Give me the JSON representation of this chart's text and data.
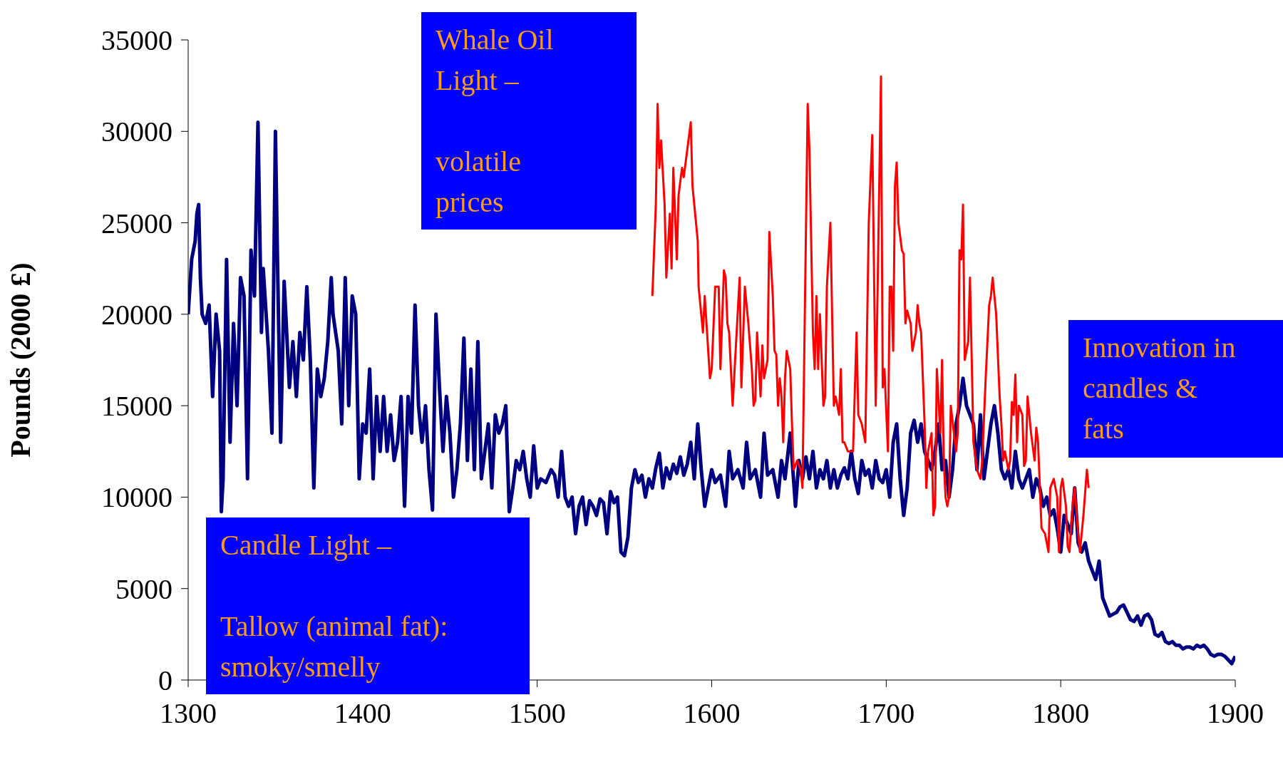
{
  "chart_data": {
    "type": "line",
    "ylabel": "Pounds (2000 £)",
    "xlim": [
      1300,
      1900
    ],
    "xticks": [
      1300,
      1400,
      1500,
      1600,
      1700,
      1800,
      1900
    ],
    "ylim": [
      0,
      35000
    ],
    "yticks": [
      0,
      5000,
      10000,
      15000,
      20000,
      25000,
      30000,
      35000
    ],
    "grid": false,
    "marker": "none",
    "line_style": "solid",
    "annotations": [
      "Whale Oil Light –\n\nvolatile\nprices",
      "Candle Light –\n\nTallow (animal fat):\nsmoky/smelly",
      "Innovation in\ncandles &\nfats"
    ],
    "series": [
      {
        "color": "#000080",
        "x": [
          1300,
          1302,
          1304,
          1305,
          1306,
          1307,
          1308,
          1310,
          1312,
          1314,
          1316,
          1318,
          1319,
          1320,
          1322,
          1324,
          1326,
          1328,
          1330,
          1332,
          1334,
          1336,
          1338,
          1340,
          1342,
          1343,
          1346,
          1348,
          1350,
          1351,
          1353,
          1355,
          1358,
          1360,
          1362,
          1364,
          1366,
          1368,
          1370,
          1372,
          1374,
          1376,
          1378,
          1380,
          1382,
          1383,
          1386,
          1388,
          1390,
          1392,
          1394,
          1396,
          1398,
          1400,
          1402,
          1404,
          1406,
          1408,
          1410,
          1412,
          1414,
          1416,
          1418,
          1420,
          1422,
          1424,
          1426,
          1428,
          1430,
          1432,
          1434,
          1436,
          1438,
          1440,
          1442,
          1444,
          1446,
          1448,
          1450,
          1452,
          1454,
          1456,
          1458,
          1460,
          1462,
          1464,
          1466,
          1468,
          1470,
          1472,
          1474,
          1476,
          1478,
          1480,
          1482,
          1484,
          1486,
          1488,
          1490,
          1492,
          1494,
          1496,
          1498,
          1500,
          1502,
          1505,
          1508,
          1510,
          1512,
          1514,
          1516,
          1518,
          1520,
          1522,
          1524,
          1526,
          1528,
          1530,
          1532,
          1534,
          1536,
          1538,
          1540,
          1542,
          1544,
          1546,
          1548,
          1550,
          1552,
          1554,
          1556,
          1558,
          1560,
          1562,
          1564,
          1566,
          1568,
          1570,
          1572,
          1574,
          1576,
          1578,
          1580,
          1582,
          1584,
          1586,
          1588,
          1590,
          1592,
          1594,
          1596,
          1598,
          1600,
          1602,
          1605,
          1608,
          1610,
          1612,
          1615,
          1618,
          1620,
          1622,
          1625,
          1628,
          1630,
          1632,
          1635,
          1638,
          1640,
          1642,
          1645,
          1648,
          1650,
          1652,
          1654,
          1656,
          1658,
          1660,
          1662,
          1664,
          1666,
          1668,
          1670,
          1672,
          1674,
          1676,
          1678,
          1680,
          1682,
          1684,
          1686,
          1688,
          1690,
          1692,
          1694,
          1696,
          1698,
          1700,
          1702,
          1704,
          1706,
          1708,
          1710,
          1712,
          1714,
          1716,
          1718,
          1720,
          1722,
          1724,
          1726,
          1728,
          1730,
          1732,
          1734,
          1736,
          1738,
          1740,
          1742,
          1744,
          1746,
          1748,
          1750,
          1752,
          1754,
          1756,
          1758,
          1760,
          1762,
          1764,
          1766,
          1768,
          1770,
          1772,
          1774,
          1776,
          1778,
          1780,
          1782,
          1784,
          1786,
          1788,
          1790,
          1792,
          1794,
          1796,
          1798,
          1800,
          1802,
          1804,
          1806,
          1808,
          1810,
          1812,
          1814,
          1816,
          1818,
          1820,
          1822,
          1824,
          1826,
          1828,
          1830,
          1832,
          1834,
          1836,
          1838,
          1840,
          1842,
          1844,
          1846,
          1848,
          1850,
          1852,
          1854,
          1856,
          1858,
          1860,
          1862,
          1864,
          1866,
          1868,
          1870,
          1872,
          1874,
          1876,
          1878,
          1880,
          1882,
          1884,
          1886,
          1888,
          1890,
          1892,
          1894,
          1896,
          1898,
          1900
        ],
        "values": [
          20000,
          23000,
          24000,
          25500,
          26000,
          22000,
          20000,
          19500,
          20500,
          15500,
          20000,
          18000,
          9200,
          11000,
          23000,
          13000,
          19500,
          15000,
          22000,
          21000,
          11000,
          23500,
          21000,
          30500,
          19000,
          22500,
          18000,
          13500,
          30000,
          24000,
          13000,
          21800,
          16000,
          18500,
          15500,
          19000,
          17500,
          21500,
          17500,
          10500,
          17000,
          15500,
          16500,
          18500,
          22000,
          20000,
          18000,
          14000,
          22000,
          15000,
          21000,
          20000,
          11000,
          14000,
          13500,
          17000,
          11000,
          15500,
          12500,
          15500,
          12500,
          14500,
          12000,
          13000,
          15500,
          9500,
          15500,
          13500,
          20500,
          15000,
          13000,
          15000,
          11500,
          9300,
          20000,
          16000,
          12500,
          15500,
          13500,
          10000,
          11500,
          14000,
          18700,
          12000,
          17000,
          11500,
          18500,
          11000,
          12500,
          14000,
          10500,
          14500,
          13500,
          14000,
          15000,
          9200,
          10500,
          12000,
          11500,
          12500,
          11000,
          10000,
          12800,
          10500,
          11000,
          10800,
          11500,
          11200,
          10000,
          12500,
          10000,
          9500,
          10000,
          8000,
          9500,
          10000,
          8500,
          9800,
          9500,
          9000,
          9900,
          9700,
          8000,
          10300,
          9700,
          10000,
          7000,
          6800,
          7800,
          10500,
          11500,
          10800,
          11200,
          10000,
          11000,
          10500,
          11600,
          12400,
          10500,
          11600,
          11000,
          11800,
          11300,
          12200,
          11200,
          11800,
          13000,
          11000,
          14000,
          11500,
          9500,
          10500,
          11500,
          10800,
          11200,
          9500,
          12500,
          11000,
          11500,
          10500,
          13000,
          11000,
          11500,
          10000,
          13500,
          11200,
          11500,
          10000,
          12000,
          11000,
          13500,
          9500,
          12000,
          11000,
          12200,
          11000,
          12500,
          10500,
          11500,
          11000,
          12000,
          10500,
          11500,
          10500,
          11200,
          11600,
          11000,
          12500,
          11000,
          10200,
          12000,
          11200,
          11500,
          10500,
          12000,
          11000,
          10800,
          11500,
          10000,
          13000,
          14000,
          11000,
          9000,
          10500,
          13500,
          14200,
          13000,
          14000,
          12500,
          12000,
          11500,
          12500,
          14000,
          11500,
          12000,
          10000,
          11500,
          14000,
          15000,
          16500,
          15000,
          14500,
          14000,
          11500,
          14500,
          11000,
          12500,
          14000,
          15000,
          13500,
          11500,
          11000,
          11500,
          10500,
          12500,
          11000,
          10500,
          11000,
          11500,
          10000,
          11000,
          10500,
          9500,
          10000,
          9000,
          9300,
          8300,
          7000,
          9000,
          8500,
          8000,
          10500,
          7500,
          7000,
          7500,
          6500,
          6000,
          5500,
          6500,
          4500,
          4000,
          3500,
          3600,
          3700,
          4000,
          4100,
          3700,
          3300,
          3200,
          3500,
          3000,
          3500,
          3600,
          3300,
          2500,
          2400,
          2600,
          2100,
          2000,
          2100,
          1900,
          1900,
          1700,
          1800,
          1800,
          1700,
          1900,
          1800,
          1900,
          1700,
          1400,
          1300,
          1400,
          1400,
          1300,
          1100,
          900,
          1300
        ]
      },
      {
        "color": "#ff0000",
        "x": [
          1566,
          1568,
          1569,
          1570,
          1571,
          1573,
          1574,
          1576,
          1577,
          1578,
          1580,
          1581,
          1583,
          1584,
          1586,
          1588,
          1589,
          1592,
          1592.5,
          1594,
          1595,
          1596,
          1599,
          1600,
          1602,
          1604,
          1605,
          1607,
          1608,
          1609,
          1610,
          1612,
          1614,
          1616,
          1617,
          1619,
          1621,
          1623,
          1624,
          1625,
          1626,
          1628,
          1629,
          1630,
          1632,
          1633,
          1635,
          1636,
          1637,
          1638,
          1639,
          1640,
          1641,
          1642,
          1643,
          1645,
          1646,
          1647,
          1649,
          1651,
          1652,
          1655,
          1656,
          1658,
          1659,
          1660,
          1661,
          1662,
          1664,
          1665,
          1666,
          1668,
          1670,
          1671,
          1673,
          1674,
          1675,
          1676,
          1678,
          1680,
          1681,
          1683,
          1684,
          1686,
          1688,
          1690,
          1692,
          1694,
          1697,
          1698,
          1699,
          1701,
          1702,
          1703,
          1704,
          1705,
          1706,
          1707,
          1709,
          1710,
          1711,
          1712,
          1714,
          1715,
          1716,
          1717,
          1718,
          1719,
          1720,
          1722,
          1723,
          1724,
          1726,
          1727,
          1728,
          1729,
          1731,
          1732,
          1733,
          1734,
          1735,
          1736,
          1737,
          1740,
          1741,
          1742,
          1743,
          1744,
          1745,
          1747,
          1748,
          1750,
          1752,
          1754,
          1755,
          1757,
          1759,
          1760,
          1761,
          1763,
          1765,
          1766,
          1767,
          1768,
          1770,
          1771,
          1772,
          1773,
          1774,
          1775,
          1776,
          1778,
          1779,
          1780,
          1781,
          1783,
          1785,
          1786,
          1787,
          1789,
          1791,
          1793,
          1794,
          1796,
          1798,
          1799,
          1800,
          1801,
          1803,
          1804,
          1805,
          1807,
          1808,
          1810,
          1811,
          1813,
          1815,
          1816
        ],
        "values": [
          21000,
          26000,
          31500,
          28000,
          29500,
          26000,
          22000,
          25500,
          22500,
          28000,
          23000,
          26500,
          28000,
          27500,
          29000,
          30500,
          27000,
          24000,
          21500,
          20000,
          19000,
          21000,
          16500,
          17000,
          21500,
          21500,
          17000,
          22400,
          22000,
          19500,
          19000,
          15000,
          18500,
          22000,
          16000,
          21500,
          19500,
          17000,
          15000,
          15300,
          19000,
          15500,
          18300,
          16500,
          17500,
          24500,
          21000,
          18000,
          17800,
          15000,
          16500,
          15500,
          13000,
          16500,
          18000,
          17000,
          14000,
          11500,
          12000,
          11500,
          10500,
          31500,
          29000,
          19000,
          17000,
          21000,
          17000,
          20000,
          15000,
          15500,
          21500,
          25000,
          15000,
          15500,
          14500,
          17000,
          13000,
          13000,
          12500,
          12500,
          12500,
          19000,
          14500,
          14000,
          13000,
          25000,
          29800,
          15000,
          33000,
          16000,
          17000,
          12500,
          21500,
          21500,
          18000,
          27000,
          28300,
          25000,
          23500,
          23300,
          19500,
          20200,
          19500,
          18000,
          18500,
          19000,
          20500,
          19500,
          19000,
          14000,
          10500,
          12500,
          13500,
          9000,
          9500,
          17000,
          13500,
          17500,
          12000,
          10000,
          9500,
          10000,
          15000,
          12500,
          13500,
          23500,
          23000,
          26000,
          17500,
          18500,
          22000,
          13000,
          11500,
          11000,
          12000,
          16500,
          20500,
          21000,
          22000,
          20000,
          15500,
          14000,
          12000,
          12500,
          11500,
          12000,
          15200,
          14500,
          16700,
          13000,
          15000,
          14500,
          11700,
          12000,
          15500,
          13500,
          12000,
          13800,
          13000,
          8300,
          8000,
          7000,
          10500,
          11000,
          10000,
          7000,
          10500,
          11000,
          9500,
          7300,
          7000,
          9800,
          10500,
          8000,
          7000,
          9000,
          11500,
          10500
        ]
      }
    ]
  }
}
